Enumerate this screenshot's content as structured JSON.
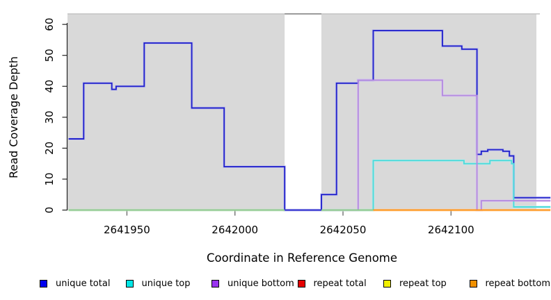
{
  "chart_data": {
    "type": "line",
    "step": "after",
    "title": "",
    "xlabel": "Coordinate in Reference Genome",
    "ylabel": "Read Coverage Depth",
    "xlim": [
      2641922.5,
      2642139.5
    ],
    "ylim": [
      0,
      63.4
    ],
    "x_ticks": [
      2641950,
      2642000,
      2642050,
      2642100
    ],
    "y_ticks": [
      0,
      10,
      20,
      30,
      40,
      50,
      60
    ],
    "grid": "off",
    "panel_background": "#d9d9d9",
    "panel_top_border_color": "#c4c4c4",
    "masked_region": {
      "from": 2642023,
      "to": 2642040,
      "fill": "#ffffff",
      "top_edge_color": "#9b9b9b"
    },
    "series": [
      {
        "name": "unique total",
        "line_color": "#2222cc",
        "halo_color": "#b9b9f0",
        "runs": [
          [
            [
              2641923,
              23
            ],
            [
              2641930,
              41
            ],
            [
              2641943,
              39
            ],
            [
              2641945,
              40
            ],
            [
              2641958,
              54
            ],
            [
              2641980,
              33
            ],
            [
              2641995,
              14
            ],
            [
              2642023,
              0
            ],
            [
              2642040,
              5
            ],
            [
              2642047,
              41
            ],
            [
              2642057,
              42
            ],
            [
              2642064,
              58
            ],
            [
              2642096,
              53
            ],
            [
              2642105,
              52
            ],
            [
              2642112,
              18
            ],
            [
              2642114,
              19
            ],
            [
              2642117,
              19.5
            ],
            [
              2642124,
              19
            ],
            [
              2642127,
              17.5
            ],
            [
              2642129,
              4
            ],
            [
              2642146,
              4
            ]
          ]
        ]
      },
      {
        "name": "unique top",
        "line_color": "#4cdbdb",
        "halo_color": "#b5eeee",
        "runs": [
          [
            [
              2642040,
              0
            ],
            [
              2642064,
              16
            ],
            [
              2642106,
              15
            ],
            [
              2642118,
              16
            ],
            [
              2642128,
              15
            ],
            [
              2642129,
              1
            ],
            [
              2642146,
              1
            ]
          ]
        ]
      },
      {
        "name": "unique bottom",
        "line_color": "#b48ae0",
        "halo_color": "#dcc8f2",
        "runs": [
          [
            [
              2642040,
              0
            ],
            [
              2642057,
              42
            ],
            [
              2642096,
              37
            ],
            [
              2642112,
              0
            ],
            [
              2642114,
              3
            ],
            [
              2642146,
              3
            ]
          ]
        ]
      },
      {
        "name": "repeat total",
        "line_color": "#dd0000",
        "halo_color": "#f0b0b0",
        "runs": []
      },
      {
        "name": "repeat top",
        "line_color": "#8cc88c",
        "halo_color": "#c8e6c8",
        "runs": [
          [
            [
              2641923,
              0
            ],
            [
              2642023,
              0
            ]
          ],
          [
            [
              2642040,
              0
            ],
            [
              2642064,
              0
            ]
          ]
        ]
      },
      {
        "name": "repeat bottom",
        "line_color": "#ff9214",
        "halo_color": "#ffd0a0",
        "runs": [
          [
            [
              2642064,
              0
            ],
            [
              2642146,
              0
            ]
          ]
        ]
      }
    ],
    "legend": [
      {
        "label": "unique total",
        "color": "#0000f0"
      },
      {
        "label": "unique top",
        "color": "#00e6e6"
      },
      {
        "label": "unique bottom",
        "color": "#9933f0"
      },
      {
        "label": "repeat total",
        "color": "#e60000"
      },
      {
        "label": "repeat top",
        "color": "#f0f000"
      },
      {
        "label": "repeat bottom",
        "color": "#f09000"
      }
    ],
    "legend_position": "bottom"
  }
}
